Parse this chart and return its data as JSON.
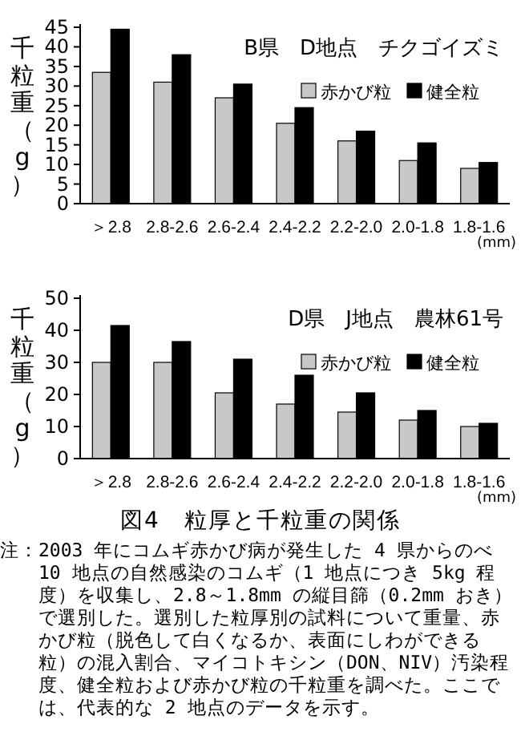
{
  "chart_data": [
    {
      "type": "bar",
      "title": "B県　D地点　チクゴイズミ",
      "ylabel": "千粒重（g）",
      "xlabel": "(mm)",
      "categories": [
        "＞2.8",
        "2.8-2.6",
        "2.6-2.4",
        "2.4-2.2",
        "2.2-2.0",
        "2.0-1.8",
        "1.8-1.6"
      ],
      "series": [
        {
          "name": "赤かび粒",
          "color": "#c8c8c8",
          "values": [
            33.5,
            31,
            27,
            20.5,
            16,
            11,
            9
          ]
        },
        {
          "name": "健全粒",
          "color": "#000000",
          "values": [
            44.5,
            38,
            30.5,
            24.5,
            18.5,
            15.5,
            10.5
          ]
        }
      ],
      "ylim": [
        0,
        45
      ],
      "yticks": [
        0,
        5,
        10,
        15,
        20,
        25,
        30,
        35,
        40,
        45
      ],
      "legend": "top right"
    },
    {
      "type": "bar",
      "title": "D県　J地点　農林61号",
      "ylabel": "千粒重（g）",
      "xlabel": "(mm)",
      "categories": [
        "＞2.8",
        "2.8-2.6",
        "2.6-2.4",
        "2.4-2.2",
        "2.2-2.0",
        "2.0-1.8",
        "1.8-1.6"
      ],
      "series": [
        {
          "name": "赤かび粒",
          "color": "#c8c8c8",
          "values": [
            30,
            30,
            20.5,
            17,
            14.5,
            12,
            10
          ]
        },
        {
          "name": "健全粒",
          "color": "#000000",
          "values": [
            41.5,
            36.5,
            31,
            26,
            20.5,
            15,
            11
          ]
        }
      ],
      "ylim": [
        0,
        50
      ],
      "yticks": [
        0,
        10,
        20,
        30,
        40,
        50
      ],
      "legend": "top right",
      "annotations": [
        "図4　粒厚と千粒重の関係",
        "注：2003 年にコムギ赤かび病が発生した 4 県からのべ 10 地点の自然感染のコムギ（1 地点につき 5kg 程度）を収集し、2.8～1.8mm の縦目篩（0.2mm おき）で選別した。選別した粒厚別の試料について重量、赤かび粒（脱色して白くなるか、表面にしわができる粒）の混入割合、マイコトキシン（DON、NIV）汚染程度、健全粒および赤かび粒の千粒重を調べた。ここでは、代表的な 2 地点のデータを示す。"
      ]
    }
  ]
}
